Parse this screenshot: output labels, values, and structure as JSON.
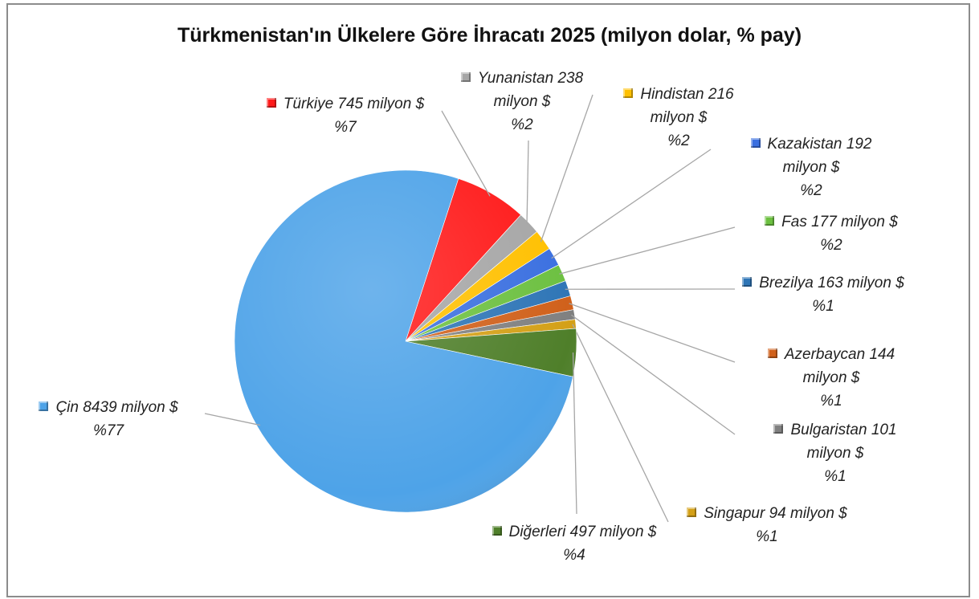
{
  "chart_data": {
    "type": "pie",
    "title": "Türkmenistan'ın Ülkelere Göre İhracatı 2025 (milyon dolar, % pay)",
    "categories": [
      "Türkiye",
      "Yunanistan",
      "Hindistan",
      "Kazakistan",
      "Fas",
      "Brezilya",
      "Azerbaycan",
      "Bulgaristan",
      "Singapur",
      "Diğerleri",
      "Çin"
    ],
    "values": [
      745,
      238,
      216,
      192,
      177,
      163,
      144,
      101,
      94,
      497,
      8439
    ],
    "value_labels": [
      "745 milyon $",
      "238 milyon $",
      "216 milyon $",
      "192 milyon $",
      "177 milyon $",
      "163 milyon $",
      "144 milyon $",
      "101 milyon $",
      "94 milyon $",
      "497 milyon $",
      "8439 milyon $"
    ],
    "percent_labels": [
      "%7",
      "%2",
      "%2",
      "%2",
      "%2",
      "%1",
      "%1",
      "%1",
      "%1",
      "%4",
      "%77"
    ],
    "colors": [
      "#ff1a1a",
      "#a6a6a6",
      "#ffc000",
      "#3a6fe0",
      "#6cc040",
      "#2e75b6",
      "#d0601a",
      "#808080",
      "#d4a017",
      "#4f7f2a",
      "#4ea3e8"
    ]
  }
}
